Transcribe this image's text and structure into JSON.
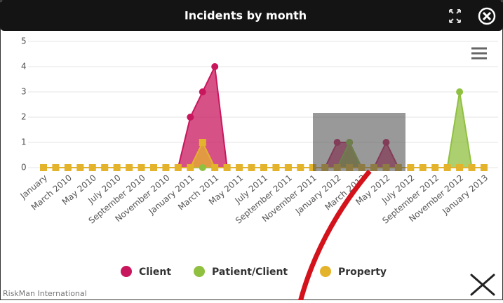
{
  "chart_data": {
    "type": "area",
    "title": "Incidents by month",
    "categories": [
      "January",
      null,
      "March 2010",
      null,
      "May 2010",
      null,
      "July 2010",
      null,
      "September 2010",
      null,
      "November 2010",
      null,
      "January 2011",
      null,
      "March 2011",
      null,
      "May 2011",
      null,
      "July 2011",
      null,
      "September 2011",
      null,
      "November 2011",
      null,
      "January 2012",
      null,
      "March 2012",
      null,
      "May 2012",
      null,
      "July 2012",
      null,
      "September 2012",
      null,
      "November 2012",
      null,
      "January 2013"
    ],
    "series": [
      {
        "name": "Client",
        "color": "#c8175d",
        "marker": "circle",
        "values": [
          0,
          0,
          0,
          0,
          0,
          0,
          0,
          0,
          0,
          0,
          0,
          0,
          2,
          3,
          4,
          0,
          0,
          0,
          0,
          0,
          0,
          0,
          0,
          0,
          1,
          1,
          0,
          0,
          1,
          0,
          0,
          0,
          0,
          0,
          0,
          0,
          0
        ]
      },
      {
        "name": "Patient/Client",
        "color": "#90c040",
        "marker": "circle",
        "values": [
          0,
          0,
          0,
          0,
          0,
          0,
          0,
          0,
          0,
          0,
          0,
          0,
          0,
          0,
          0,
          0,
          0,
          0,
          0,
          0,
          0,
          0,
          0,
          0,
          0,
          1,
          0,
          0,
          0,
          0,
          0,
          0,
          0,
          0,
          3,
          0,
          0
        ]
      },
      {
        "name": "Property",
        "color": "#e4b32c",
        "marker": "square",
        "values": [
          0,
          0,
          0,
          0,
          0,
          0,
          0,
          0,
          0,
          0,
          0,
          0,
          0,
          1,
          0,
          0,
          0,
          0,
          0,
          0,
          0,
          0,
          0,
          0,
          0,
          0,
          0,
          0,
          0,
          0,
          0,
          0,
          0,
          0,
          0,
          0,
          0
        ]
      }
    ],
    "ylim": [
      0,
      5
    ],
    "yticks": [
      0,
      1,
      2,
      3,
      4,
      5
    ],
    "grid": true,
    "credit": "RiskMan International"
  }
}
